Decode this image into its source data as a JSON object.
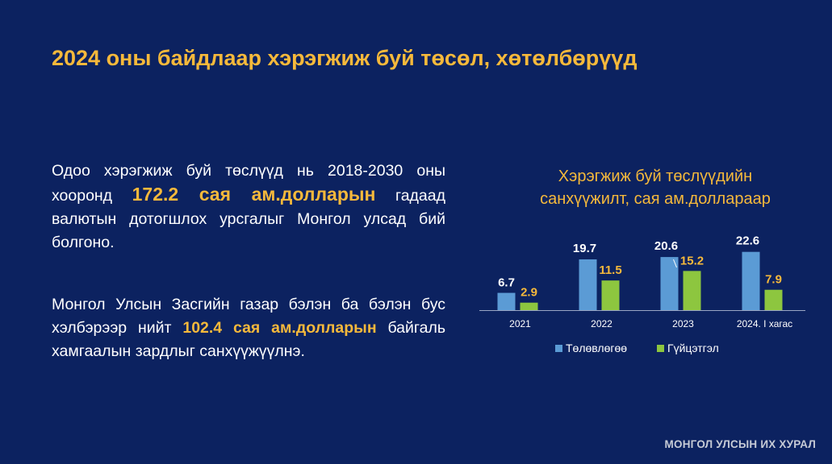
{
  "slide": {
    "title": "2024 оны байдлаар хэрэгжиж буй төсөл, хөтөлбөрүүд",
    "footer": "МОНГОЛ УЛСЫН ИХ ХУРАЛ"
  },
  "paragraphs": [
    {
      "before": "Одоо хэрэгжиж буй төслүүд нь 2018-2030 оны хооронд ",
      "highlight": "172.2 сая ам.долларын",
      "after": " гадаад валютын дотогшлох урсгалыг Монгол улсад бий болгоно."
    },
    {
      "before": "Монгол Улсын Засгийн газар бэлэн ба бэлэн бус хэлбэрээр нийт ",
      "highlight": "102.4 сая ам.долларын",
      "after": " байгаль хамгаалын зардлыг санхүүжүүлнэ."
    }
  ],
  "chart_data": {
    "type": "bar",
    "title_lines": [
      "Хэрэгжиж буй төслүүдийн",
      "санхүүжилт, сая ам.доллараар"
    ],
    "categories": [
      "2021",
      "2022",
      "2023",
      "2024. I хагас"
    ],
    "series": [
      {
        "name": "Төлөвлөгөө",
        "values": [
          6.7,
          19.7,
          20.6,
          22.6
        ],
        "color": "#5b9bd5",
        "label_color": "#ffffff"
      },
      {
        "name": "Гүйцэтгэл",
        "values": [
          2.9,
          11.5,
          15.2,
          7.9
        ],
        "color": "#8dc63f",
        "label_color": "#f6b93b"
      }
    ],
    "ylim": [
      0,
      25
    ],
    "grid": false,
    "legend": "bottom"
  }
}
